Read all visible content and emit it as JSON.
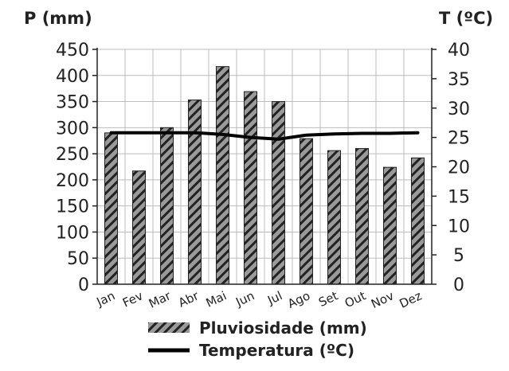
{
  "chart_data": {
    "type": "bar",
    "categories": [
      "Jan",
      "Fev",
      "Mar",
      "Abr",
      "Mai",
      "Jun",
      "Jul",
      "Ago",
      "Set",
      "Out",
      "Nov",
      "Dez"
    ],
    "series": [
      {
        "name": "Pluviosidade (mm)",
        "type": "bar",
        "axis": "left",
        "pattern": "diagonal-hatch",
        "values": [
          290,
          217,
          300,
          353,
          417,
          369,
          350,
          279,
          256,
          260,
          224,
          242
        ]
      },
      {
        "name": "Temperatura (ºC)",
        "type": "line",
        "axis": "right",
        "color": "#000000",
        "values": [
          25.8,
          25.8,
          25.8,
          25.8,
          25.5,
          25.0,
          24.7,
          25.4,
          25.6,
          25.7,
          25.7,
          25.8
        ]
      }
    ],
    "left_axis": {
      "label": "P (mm)",
      "ylim": [
        0,
        450
      ],
      "ticks": [
        "0",
        "50",
        "100",
        "150",
        "200",
        "250",
        "300",
        "350",
        "400",
        "450"
      ]
    },
    "right_axis": {
      "label": "T (ºC)",
      "ylim": [
        0,
        40
      ],
      "ticks": [
        "0",
        "5",
        "10",
        "15",
        "20",
        "25",
        "30",
        "35",
        "40"
      ]
    },
    "grid": true,
    "legend": "bottom",
    "colors": {
      "bar_fill": "#9a9a9a",
      "hatch": "#222222",
      "grid": "#bdbdbd",
      "line": "#000000"
    }
  }
}
